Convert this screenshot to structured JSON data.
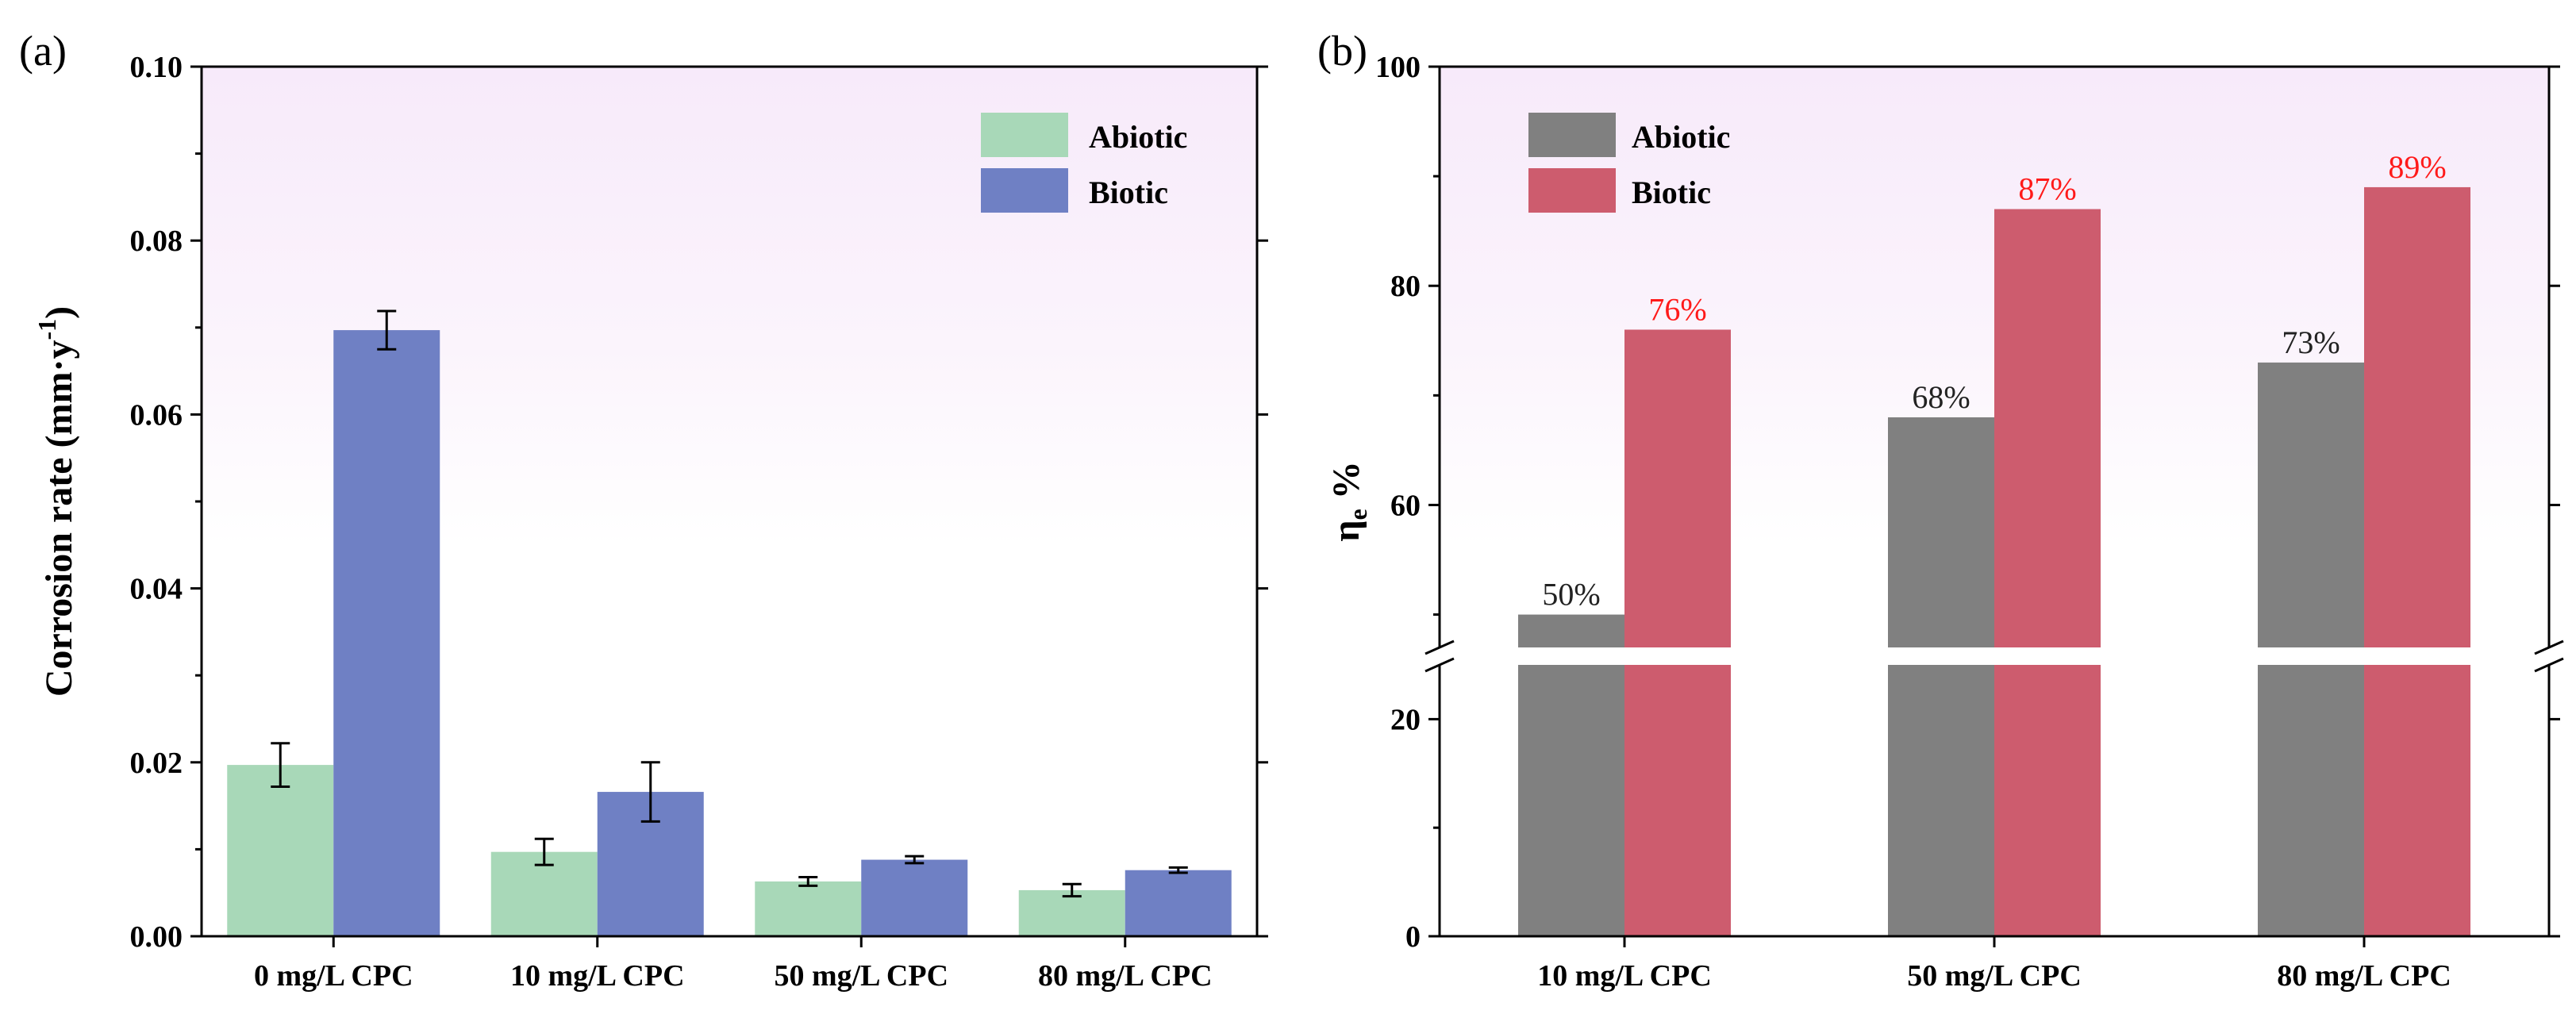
{
  "chart_data": [
    {
      "panel": "(a)",
      "type": "bar",
      "title": "",
      "xlabel": "",
      "ylabel": "Corrosion rate (mm·y",
      "ylabel_superscript": "-1",
      "ylabel_close": ")",
      "ylim": [
        0.0,
        0.1
      ],
      "yticks": [
        "0.00",
        "0.02",
        "0.04",
        "0.06",
        "0.08",
        "0.10"
      ],
      "categories": [
        "0 mg/L CPC",
        "10 mg/L CPC",
        "50 mg/L CPC",
        "80 mg/L CPC"
      ],
      "series": [
        {
          "name": "Abiotic",
          "color": "#a8d8b8",
          "values": [
            0.0197,
            0.0097,
            0.0063,
            0.0053
          ],
          "errors": [
            0.0025,
            0.0015,
            0.0005,
            0.0007
          ]
        },
        {
          "name": "Biotic",
          "color": "#6f80c4",
          "values": [
            0.0697,
            0.0166,
            0.0088,
            0.0076
          ],
          "errors": [
            0.0022,
            0.0034,
            0.0004,
            0.0003
          ]
        }
      ],
      "legend": "top-right"
    },
    {
      "panel": "(b)",
      "type": "bar",
      "title": "",
      "xlabel": "",
      "ylabel": "η",
      "ylabel_subscript": "e",
      "ylabel_suffix": " %",
      "ylim": [
        0,
        100
      ],
      "axis_break": [
        25,
        47
      ],
      "yticks": [
        "0",
        "20",
        "60",
        "80",
        "100"
      ],
      "categories": [
        "10 mg/L CPC",
        "50 mg/L CPC",
        "80 mg/L CPC"
      ],
      "series": [
        {
          "name": "Abiotic",
          "color": "#808080",
          "label_color": "#222222",
          "values": [
            50,
            68,
            73
          ],
          "labels": [
            "50%",
            "68%",
            "73%"
          ]
        },
        {
          "name": "Biotic",
          "color": "#cd5c6e",
          "label_color": "#ff1a1a",
          "values": [
            76,
            87,
            89
          ],
          "labels": [
            "76%",
            "87%",
            "89%"
          ]
        }
      ],
      "legend": "top-left"
    }
  ]
}
